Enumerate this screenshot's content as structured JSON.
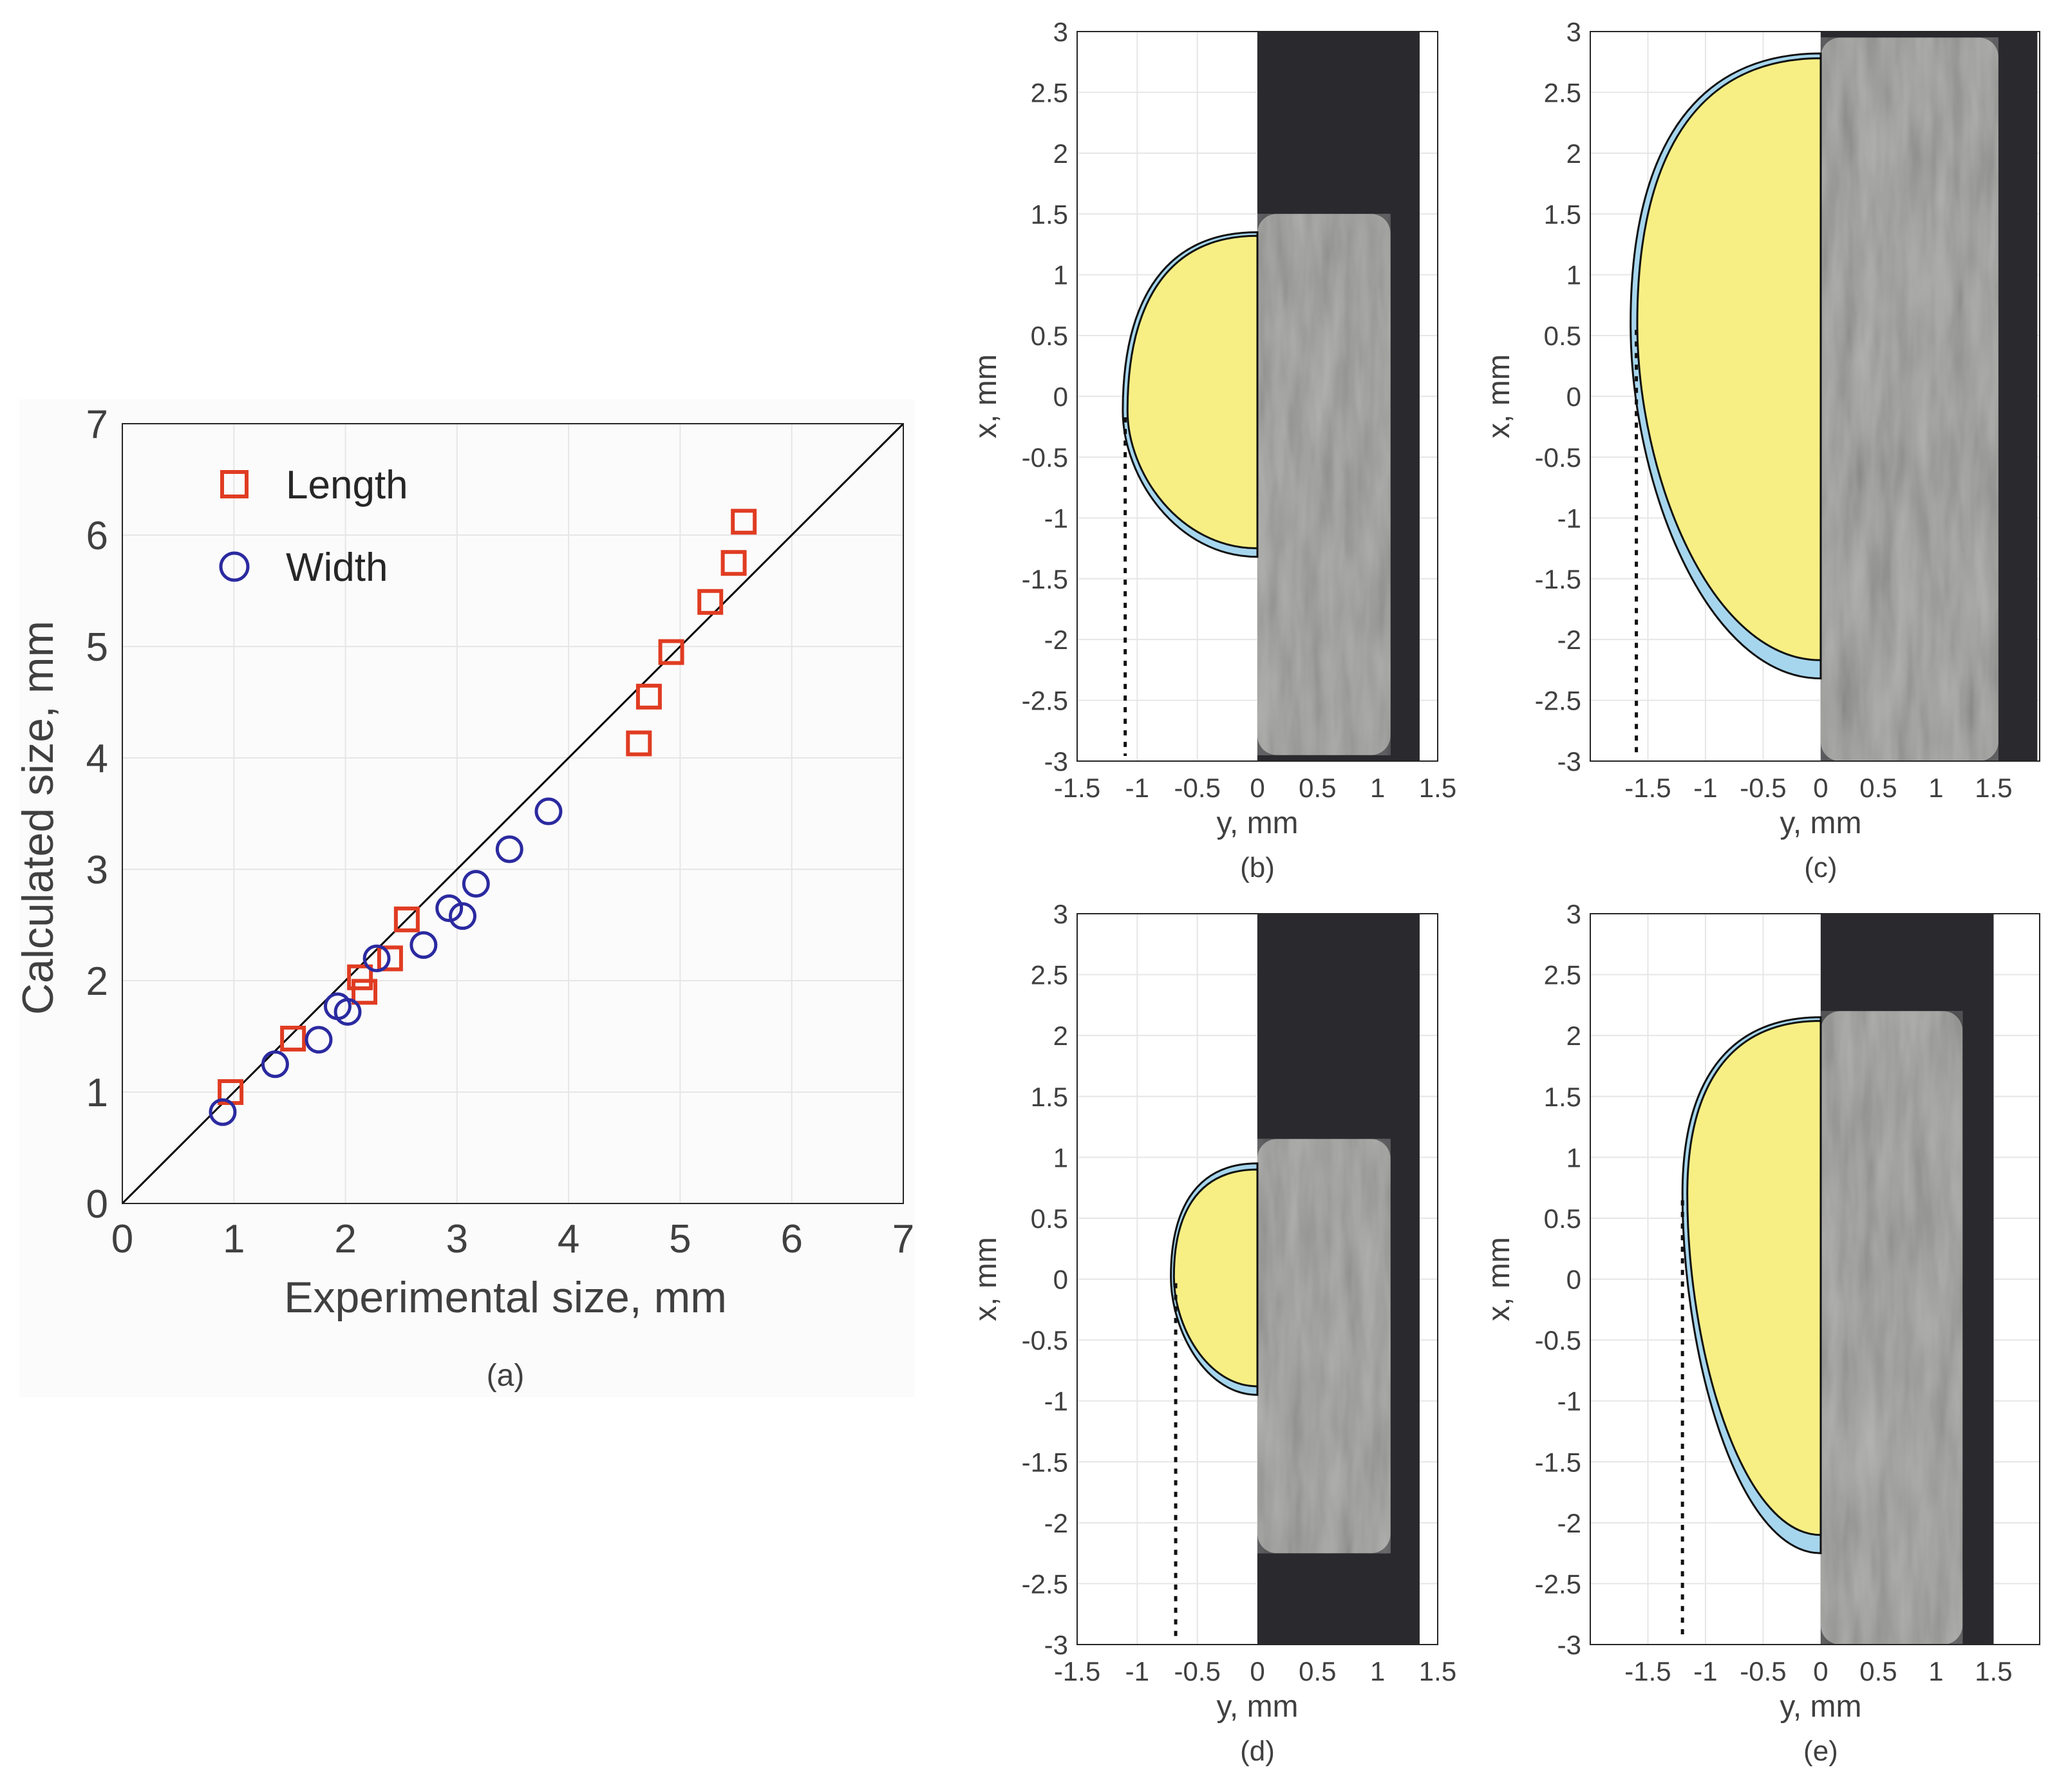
{
  "chart_data": [
    {
      "panel": "a",
      "type": "scatter",
      "caption": "(a)",
      "xlabel": "Experimental size, mm",
      "ylabel": "Calculated size, mm",
      "xlim": [
        0,
        7
      ],
      "ylim": [
        0,
        7
      ],
      "xticks": [
        0,
        1,
        2,
        3,
        4,
        5,
        6,
        7
      ],
      "yticks": [
        0,
        1,
        2,
        3,
        4,
        5,
        6,
        7
      ],
      "grid": true,
      "legend_position": "top-left",
      "reference_line": {
        "x": [
          0,
          7
        ],
        "y": [
          0,
          7
        ]
      },
      "series": [
        {
          "name": "Length",
          "marker": "square",
          "color": "#e03c22",
          "x": [
            0.97,
            1.53,
            2.13,
            2.17,
            2.4,
            2.55,
            4.63,
            4.72,
            4.92,
            5.27,
            5.48,
            5.57
          ],
          "y": [
            1.0,
            1.48,
            2.03,
            1.9,
            2.2,
            2.55,
            4.13,
            4.55,
            4.95,
            5.4,
            5.75,
            6.12
          ]
        },
        {
          "name": "Width",
          "marker": "circle",
          "color": "#2b2aa0",
          "x": [
            0.9,
            1.37,
            1.76,
            1.93,
            2.02,
            2.28,
            2.7,
            2.93,
            3.05,
            3.17,
            3.47,
            3.82
          ],
          "y": [
            0.82,
            1.25,
            1.47,
            1.77,
            1.72,
            2.2,
            2.32,
            2.65,
            2.58,
            2.87,
            3.18,
            3.52
          ]
        }
      ]
    },
    {
      "panel": "b",
      "type": "area",
      "caption": "(b)",
      "xlabel": "y, mm",
      "ylabel": "x, mm",
      "xlim": [
        -1.5,
        1.5
      ],
      "ylim": [
        -3,
        3
      ],
      "xticks": [
        -1.5,
        -1,
        -0.5,
        0,
        0.5,
        1,
        1.5
      ],
      "yticks": [
        3,
        2.5,
        2,
        1.5,
        1,
        0.5,
        0,
        -0.5,
        -1,
        -1.5,
        -2,
        -2.5,
        -3
      ],
      "grid": true,
      "inner_top": 1.32,
      "inner_bottom": -1.25,
      "outer_top": 1.35,
      "outer_bottom": -1.32,
      "max_half_width": 1.12,
      "widest_at": -0.12,
      "dotted_line_y": -1.1,
      "photo_right": 1.35,
      "photo_top": 3.0,
      "photo_bottom": -3.0,
      "photo_fill_top": 1.5,
      "photo_fill_bottom": -2.95
    },
    {
      "panel": "c",
      "type": "area",
      "caption": "(c)",
      "xlabel": "y, mm",
      "ylabel": "x, mm",
      "xlim": [
        -2.0,
        1.9
      ],
      "ylim": [
        -3,
        3
      ],
      "xticks": [
        -1.5,
        -1,
        -0.5,
        0,
        0.5,
        1,
        1.5
      ],
      "yticks": [
        3,
        2.5,
        2,
        1.5,
        1,
        0.5,
        0,
        -0.5,
        -1,
        -1.5,
        -2,
        -2.5,
        -3
      ],
      "grid": true,
      "inner_top": 2.78,
      "inner_bottom": -2.17,
      "outer_top": 2.82,
      "outer_bottom": -2.32,
      "max_half_width": 1.65,
      "widest_at": 0.6,
      "dotted_line_y": -1.6,
      "photo_right": 1.88,
      "photo_top": 3.0,
      "photo_bottom": -3.0,
      "photo_fill_top": 2.95,
      "photo_fill_bottom": -3.0
    },
    {
      "panel": "d",
      "type": "area",
      "caption": "(d)",
      "xlabel": "y, mm",
      "ylabel": "x, mm",
      "xlim": [
        -1.5,
        1.5
      ],
      "ylim": [
        -3,
        3
      ],
      "xticks": [
        -1.5,
        -1,
        -0.5,
        0,
        0.5,
        1,
        1.5
      ],
      "yticks": [
        3,
        2.5,
        2,
        1.5,
        1,
        0.5,
        0,
        -0.5,
        -1,
        -1.5,
        -2,
        -2.5,
        -3
      ],
      "grid": true,
      "inner_top": 0.9,
      "inner_bottom": -0.88,
      "outer_top": 0.95,
      "outer_bottom": -0.95,
      "max_half_width": 0.72,
      "widest_at": 0.02,
      "dotted_line_y": -0.68,
      "photo_right": 1.35,
      "photo_top": 3.0,
      "photo_bottom": -3.0,
      "photo_fill_top": 1.15,
      "photo_fill_bottom": -2.25
    },
    {
      "panel": "e",
      "type": "area",
      "caption": "(e)",
      "xlabel": "y, mm",
      "ylabel": "x, mm",
      "xlim": [
        -2.0,
        1.9
      ],
      "ylim": [
        -3,
        3
      ],
      "xticks": [
        -1.5,
        -1,
        -0.5,
        0,
        0.5,
        1,
        1.5
      ],
      "yticks": [
        3,
        2.5,
        2,
        1.5,
        1,
        0.5,
        0,
        -0.5,
        -1,
        -1.5,
        -2,
        -2.5,
        -3
      ],
      "grid": true,
      "inner_top": 2.12,
      "inner_bottom": -2.1,
      "outer_top": 2.15,
      "outer_bottom": -2.25,
      "max_half_width": 1.2,
      "widest_at": 0.7,
      "dotted_line_y": -1.2,
      "photo_right": 1.5,
      "photo_top": 3.0,
      "photo_bottom": -3.0,
      "photo_fill_top": 2.2,
      "photo_fill_bottom": -3.0
    }
  ],
  "colors": {
    "length": "#e03c22",
    "width": "#2b2aa0",
    "inner_region": "#f8ef84",
    "outer_region": "#a6d6ee",
    "photo_background": "#2a2a2e",
    "photo_texture": "#9a9a98",
    "grid": "#e6e6e6",
    "axis_text": "#404040"
  }
}
